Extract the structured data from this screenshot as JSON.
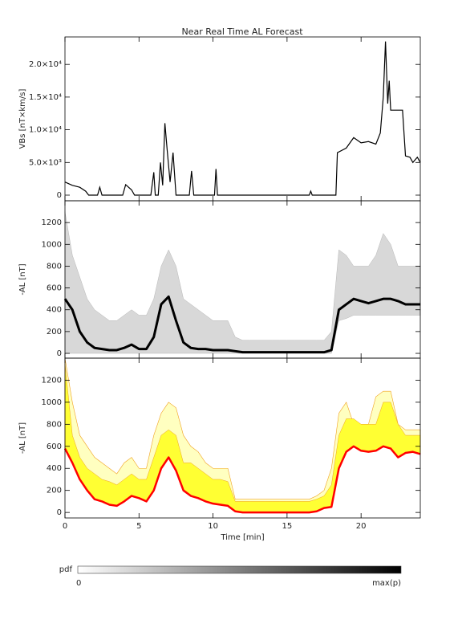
{
  "chart_data": [
    {
      "type": "line",
      "title": "Near Real Time AL Forecast",
      "ylabel": "VBs [nT×km/s]",
      "xlim": [
        0,
        24
      ],
      "xticks": [
        0,
        5,
        10,
        15,
        20
      ],
      "ylim": [
        -860,
        24200
      ],
      "yticks": [
        0,
        {
          "value": 5000,
          "label": "5.0×10³"
        },
        {
          "value": 10000,
          "label": "1.0×10⁴"
        },
        {
          "value": 15000,
          "label": "1.5×10⁴"
        },
        {
          "value": 20000,
          "label": "2.0×10⁴"
        }
      ],
      "x": [
        0,
        0.5,
        1,
        1.4,
        1.6,
        2.2,
        2.35,
        2.5,
        3.9,
        4.1,
        4.5,
        4.7,
        5.8,
        6.0,
        6.1,
        6.3,
        6.45,
        6.6,
        6.75,
        6.9,
        7.1,
        7.3,
        7.5,
        8.4,
        8.55,
        8.7,
        10.1,
        10.2,
        10.3,
        16.5,
        16.6,
        16.7,
        18.3,
        18.4,
        19.0,
        19.5,
        20.0,
        20.5,
        21.0,
        21.3,
        21.5,
        21.65,
        21.8,
        21.9,
        22.0,
        22.8,
        23.0,
        23.3,
        23.5,
        23.8,
        24
      ],
      "series": [
        {
          "color": "#000000",
          "values": [
            2000,
            1500,
            1200,
            600,
            0,
            0,
            1200,
            0,
            0,
            1600,
            800,
            0,
            0,
            3500,
            0,
            0,
            5000,
            1500,
            11000,
            7000,
            2000,
            6500,
            0,
            0,
            3700,
            0,
            0,
            4000,
            0,
            0,
            600,
            0,
            0,
            6500,
            7200,
            8800,
            8000,
            8200,
            7800,
            9500,
            15000,
            23500,
            14000,
            17500,
            13000,
            13000,
            6000,
            5800,
            5000,
            5800,
            5000
          ]
        }
      ]
    },
    {
      "type": "pdf",
      "ylabel": "-AL [nT]",
      "xlim": [
        0,
        24
      ],
      "xticks": [
        0,
        5,
        10,
        15,
        20
      ],
      "ylim": [
        -44,
        1400
      ],
      "yticks": [
        0,
        200,
        400,
        600,
        800,
        1000,
        1200
      ],
      "x": [
        0,
        0.5,
        1,
        1.5,
        2,
        2.5,
        3,
        3.5,
        4,
        4.5,
        5,
        5.5,
        6,
        6.5,
        7,
        7.5,
        8,
        8.5,
        9,
        9.5,
        10,
        10.5,
        11,
        11.5,
        12,
        12.5,
        13,
        13.5,
        14,
        14.5,
        15,
        15.5,
        16,
        16.5,
        17,
        17.5,
        18,
        18.5,
        19,
        19.5,
        20,
        20.5,
        21,
        21.5,
        22,
        22.5,
        23,
        23.5,
        24
      ],
      "series": [
        {
          "color": "#000000",
          "values": [
            500,
            400,
            200,
            100,
            50,
            40,
            30,
            30,
            50,
            80,
            40,
            40,
            150,
            450,
            520,
            300,
            100,
            50,
            40,
            40,
            30,
            30,
            30,
            20,
            10,
            10,
            10,
            10,
            10,
            10,
            10,
            10,
            10,
            10,
            10,
            10,
            30,
            400,
            450,
            500,
            480,
            460,
            480,
            500,
            500,
            480,
            450,
            450,
            450
          ]
        },
        {
          "color": "#d8d8d8",
          "values": [
            1300,
            900,
            700,
            500,
            400,
            350,
            300,
            300,
            350,
            400,
            350,
            350,
            500,
            800,
            950,
            800,
            500,
            450,
            400,
            350,
            300,
            300,
            300,
            150,
            120,
            120,
            120,
            120,
            120,
            120,
            120,
            120,
            120,
            120,
            120,
            120,
            200,
            950,
            900,
            800,
            800,
            800,
            900,
            1100,
            1000,
            800,
            800,
            800,
            800
          ]
        },
        {
          "color": "#d8d8d8",
          "values": [
            0,
            0,
            0,
            0,
            0,
            0,
            0,
            0,
            0,
            0,
            0,
            0,
            0,
            0,
            0,
            0,
            0,
            0,
            0,
            0,
            0,
            0,
            0,
            0,
            0,
            0,
            0,
            0,
            0,
            0,
            0,
            0,
            0,
            0,
            0,
            0,
            0,
            300,
            320,
            350,
            350,
            350,
            350,
            350,
            350,
            350,
            350,
            350,
            350
          ]
        }
      ]
    },
    {
      "type": "band",
      "ylabel": "-AL [nT]",
      "xlabel": "Time [min]",
      "xlim": [
        0,
        24
      ],
      "xticks": [
        0,
        5,
        10,
        15,
        20
      ],
      "ylim": [
        -50,
        1400
      ],
      "yticks": [
        0,
        200,
        400,
        600,
        800,
        1000,
        1200
      ],
      "x": [
        0,
        0.5,
        1,
        1.5,
        2,
        2.5,
        3,
        3.5,
        4,
        4.5,
        5,
        5.5,
        6,
        6.5,
        7,
        7.5,
        8,
        8.5,
        9,
        9.5,
        10,
        10.5,
        11,
        11.5,
        12,
        12.5,
        13,
        13.5,
        14,
        14.5,
        15,
        15.5,
        16,
        16.5,
        17,
        17.5,
        18,
        18.5,
        19,
        19.5,
        20,
        20.5,
        21,
        21.5,
        22,
        22.5,
        23,
        23.5,
        24
      ],
      "series": [
        {
          "color": "#ff0000",
          "values": [
            580,
            450,
            300,
            200,
            120,
            100,
            70,
            60,
            100,
            150,
            130,
            100,
            200,
            400,
            500,
            380,
            200,
            150,
            130,
            100,
            80,
            70,
            60,
            10,
            0,
            0,
            0,
            0,
            0,
            0,
            0,
            0,
            0,
            0,
            10,
            40,
            50,
            400,
            550,
            600,
            560,
            550,
            560,
            600,
            580,
            500,
            540,
            550,
            530
          ]
        },
        {
          "color": "#ffff33",
          "values": [
            1350,
            700,
            500,
            400,
            350,
            300,
            280,
            250,
            300,
            350,
            300,
            300,
            500,
            700,
            750,
            700,
            450,
            450,
            400,
            350,
            300,
            300,
            280,
            100,
            100,
            100,
            100,
            100,
            100,
            100,
            100,
            100,
            100,
            100,
            120,
            150,
            250,
            700,
            850,
            850,
            800,
            800,
            800,
            1000,
            1000,
            800,
            700,
            700,
            700
          ]
        },
        {
          "color": "#ffffc0",
          "values": [
            1400,
            1000,
            700,
            600,
            500,
            450,
            400,
            350,
            450,
            500,
            400,
            400,
            700,
            900,
            1000,
            950,
            700,
            600,
            550,
            450,
            400,
            400,
            400,
            120,
            120,
            120,
            120,
            120,
            120,
            120,
            120,
            120,
            120,
            120,
            150,
            200,
            400,
            900,
            1000,
            800,
            800,
            800,
            1050,
            1100,
            1100,
            800,
            750,
            750,
            750
          ]
        }
      ]
    }
  ],
  "colorbar": {
    "label": "pdf",
    "min_label": "0",
    "max_label": "max(p)"
  }
}
